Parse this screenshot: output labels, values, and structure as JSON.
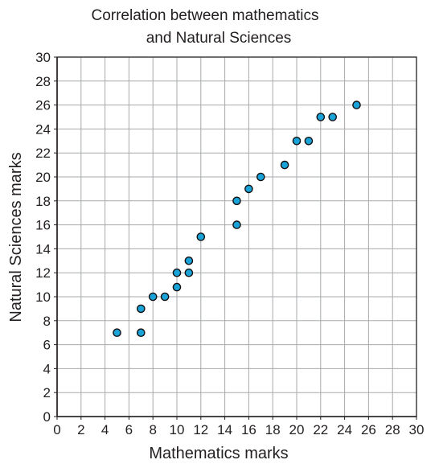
{
  "chart_data": {
    "type": "scatter",
    "title": [
      "Correlation between mathematics",
      "and Natural Sciences"
    ],
    "xlabel": "Mathematics marks",
    "ylabel": "Natural Sciences marks",
    "xlim": [
      0,
      30
    ],
    "ylim": [
      0,
      30
    ],
    "x_ticks": [
      0,
      2,
      4,
      6,
      8,
      10,
      12,
      14,
      16,
      18,
      20,
      22,
      24,
      26,
      28,
      30
    ],
    "y_ticks": [
      0,
      2,
      4,
      6,
      8,
      10,
      12,
      14,
      16,
      18,
      20,
      22,
      24,
      26,
      28,
      30
    ],
    "grid": true,
    "grid_step": 2,
    "point_color": "#1aa3d9",
    "series": [
      {
        "points": [
          {
            "x": 5,
            "y": 7
          },
          {
            "x": 7,
            "y": 7
          },
          {
            "x": 7,
            "y": 9
          },
          {
            "x": 8,
            "y": 10
          },
          {
            "x": 9,
            "y": 10
          },
          {
            "x": 10,
            "y": 10.8
          },
          {
            "x": 10,
            "y": 12
          },
          {
            "x": 11,
            "y": 12
          },
          {
            "x": 11,
            "y": 13
          },
          {
            "x": 12,
            "y": 15
          },
          {
            "x": 15,
            "y": 16
          },
          {
            "x": 15,
            "y": 18
          },
          {
            "x": 16,
            "y": 19
          },
          {
            "x": 17,
            "y": 20
          },
          {
            "x": 19,
            "y": 21
          },
          {
            "x": 20,
            "y": 23
          },
          {
            "x": 21,
            "y": 23
          },
          {
            "x": 22,
            "y": 25
          },
          {
            "x": 23,
            "y": 25
          },
          {
            "x": 25,
            "y": 26
          }
        ]
      }
    ]
  }
}
